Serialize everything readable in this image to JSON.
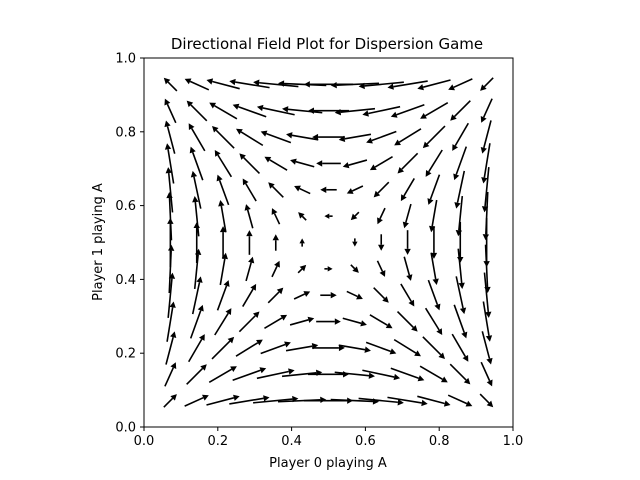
{
  "chart_data": {
    "type": "quiver",
    "title": "Directional Field Plot for Dispersion Game",
    "xlabel": "Player 0 playing A",
    "ylabel": "Player 1 playing A",
    "xlim": [
      0.0,
      1.0
    ],
    "ylim": [
      0.0,
      1.0
    ],
    "xticks": [
      "0.0",
      "0.2",
      "0.4",
      "0.6",
      "0.8",
      "1.0"
    ],
    "yticks": [
      "0.0",
      "0.2",
      "0.4",
      "0.6",
      "0.8",
      "1.0"
    ],
    "grid": false,
    "arrow_color": "#000000",
    "grid_points": [
      0.0714,
      0.1429,
      0.2143,
      0.2857,
      0.3571,
      0.4286,
      0.5,
      0.5714,
      0.6429,
      0.7143,
      0.7857,
      0.8571,
      0.9286
    ],
    "vector_field": {
      "u": "x*(1-x)*(1-2*y)",
      "v": "y*(1-y)*(1-2*x)"
    }
  }
}
